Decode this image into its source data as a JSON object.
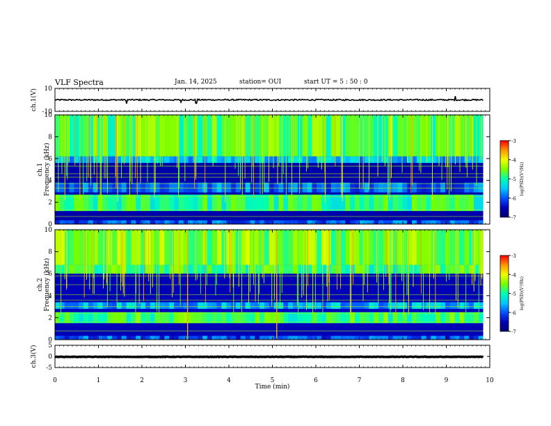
{
  "header": {
    "title": "VLF Spectra",
    "date": "Jan. 14, 2025",
    "station": "station= OUI",
    "start": "start  UT =  5 : 50 : 0"
  },
  "chart_data": [
    {
      "type": "line",
      "panel": "waveform-ch1",
      "ylabel": "ch.1(V)",
      "ylim": [
        -10,
        10
      ],
      "ytick_labels": [
        "10",
        "-10"
      ],
      "x_range_min": [
        0,
        9.85
      ],
      "baseline_value": 0,
      "noise_amplitude": 0.6,
      "spikes": [
        {
          "t": 1.65,
          "value": -3.2
        },
        {
          "t": 2.9,
          "value": -2.0
        },
        {
          "t": 3.25,
          "value": -3.0
        },
        {
          "t": 9.2,
          "value": 3.2
        }
      ]
    },
    {
      "type": "heatmap",
      "panel": "spectrogram-ch1",
      "ylabel": "ch.1\nFrequency  (kHz)",
      "ylim": [
        0,
        10
      ],
      "yticks": [
        0,
        2,
        4,
        6,
        8,
        10
      ],
      "data_end_min": 9.85,
      "colorbar": {
        "label": "log(PSD)(V²/Hz)",
        "range": [
          -7,
          -3
        ],
        "ticks": [
          -3,
          -4,
          -5,
          -6,
          -7
        ]
      },
      "background_level": -6.6,
      "bands_kHz": [
        {
          "f0": 0.0,
          "f1": 0.35,
          "level": -6.0
        },
        {
          "f0": 1.2,
          "f1": 2.7,
          "level": -4.9
        },
        {
          "f0": 2.9,
          "f1": 3.8,
          "level": -5.9
        },
        {
          "f0": 5.6,
          "f1": 6.2,
          "level": -5.5
        },
        {
          "f0": 6.2,
          "f1": 10.0,
          "level": -4.7
        }
      ],
      "tones_kHz": [
        0.7,
        1.3,
        2.5,
        3.3,
        3.7,
        4.3,
        4.6,
        5.3
      ],
      "sferic_count": 120
    },
    {
      "type": "heatmap",
      "panel": "spectrogram-ch2",
      "ylabel": "ch.2\nFrequency  (kHz)",
      "ylim": [
        0,
        10
      ],
      "yticks": [
        0,
        2,
        4,
        6,
        8,
        10
      ],
      "data_end_min": 9.85,
      "colorbar": {
        "label": "log(PSD)(V²/Hz)",
        "range": [
          -7,
          -3
        ],
        "ticks": [
          -3,
          -4,
          -5,
          -6,
          -7
        ]
      },
      "background_level": -6.5,
      "bands_kHz": [
        {
          "f0": 0.0,
          "f1": 0.35,
          "level": -6.0
        },
        {
          "f0": 1.5,
          "f1": 2.5,
          "level": -4.8
        },
        {
          "f0": 2.8,
          "f1": 3.4,
          "level": -5.6
        },
        {
          "f0": 6.0,
          "f1": 6.8,
          "level": -4.8
        },
        {
          "f0": 6.8,
          "f1": 10.0,
          "level": -4.5
        }
      ],
      "tones_kHz": [
        0.8,
        1.6,
        2.4,
        3.0,
        3.6,
        4.1,
        5.0,
        5.8
      ],
      "strong_sferics_min": [
        3.05,
        5.1
      ],
      "sferic_count": 120
    },
    {
      "type": "line",
      "panel": "waveform-ch3",
      "ylabel": "ch.3(V)",
      "ylim": [
        -5,
        5
      ],
      "ytick_labels": [
        "5",
        "0",
        "-5"
      ],
      "x_range_min": [
        0,
        9.85
      ],
      "baseline_value": -0.2,
      "noise_amplitude": 0.1
    }
  ],
  "x_axis": {
    "label": "Time  (min)",
    "xlim": [
      0,
      10
    ],
    "ticks": [
      "0",
      "1",
      "2",
      "3",
      "4",
      "5",
      "6",
      "7",
      "8",
      "9",
      "10"
    ]
  },
  "colormap": [
    "#000070",
    "#0000b8",
    "#0050ff",
    "#00c8ff",
    "#00ffb4",
    "#78ff00",
    "#f0ff00",
    "#ff9600",
    "#ff0000"
  ]
}
